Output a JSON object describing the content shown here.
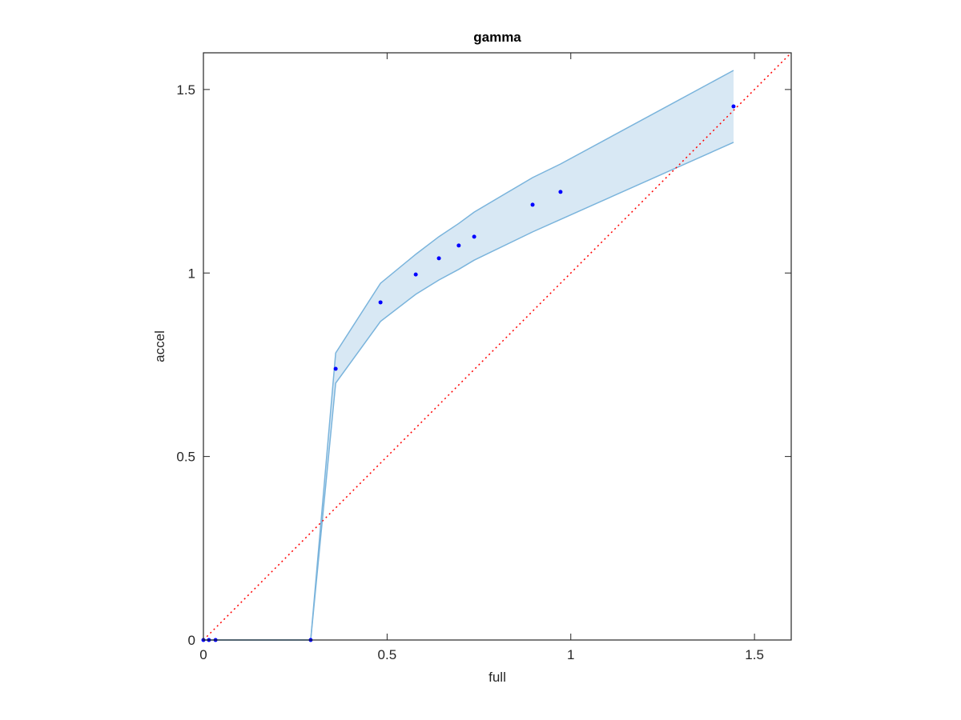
{
  "chart_data": {
    "type": "scatter",
    "title": "gamma",
    "xlabel": "full",
    "ylabel": "accel",
    "xlim": [
      0,
      1.6
    ],
    "ylim": [
      0,
      1.6
    ],
    "xticks": [
      0,
      0.5,
      1,
      1.5
    ],
    "yticks": [
      0,
      0.5,
      1,
      1.5
    ],
    "points": {
      "color": "#0000ff",
      "x": [
        0,
        0.015,
        0.033,
        0.292,
        0.36,
        0.482,
        0.578,
        0.641,
        0.695,
        0.737,
        0.896,
        0.972,
        1.443
      ],
      "y": [
        0,
        0,
        0,
        0,
        0.739,
        0.92,
        0.996,
        1.04,
        1.075,
        1.099,
        1.186,
        1.221,
        1.454
      ]
    },
    "band": {
      "color": "#7ab4dc",
      "fill": "#d8e8f4",
      "x": [
        0,
        0.015,
        0.033,
        0.292,
        0.36,
        0.482,
        0.578,
        0.641,
        0.695,
        0.737,
        0.896,
        0.972,
        1.443
      ],
      "upper": [
        0,
        0,
        0,
        0,
        0.782,
        0.972,
        1.051,
        1.099,
        1.135,
        1.166,
        1.26,
        1.297,
        1.552
      ],
      "lower": [
        0,
        0,
        0,
        0,
        0.7,
        0.868,
        0.942,
        0.981,
        1.01,
        1.035,
        1.112,
        1.146,
        1.356
      ]
    },
    "reference_line": {
      "color": "#ff0000",
      "x": [
        0,
        1.6
      ],
      "y": [
        0,
        1.6
      ]
    }
  }
}
